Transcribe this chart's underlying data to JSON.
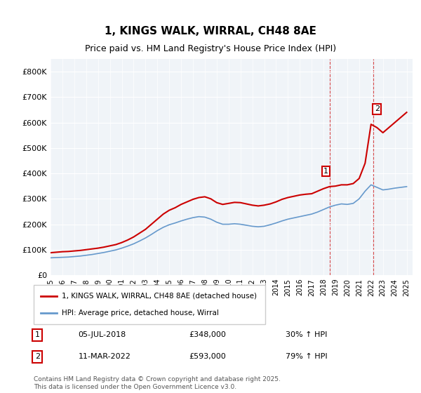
{
  "title": "1, KINGS WALK, WIRRAL, CH48 8AE",
  "subtitle": "Price paid vs. HM Land Registry's House Price Index (HPI)",
  "legend_label_red": "1, KINGS WALK, WIRRAL, CH48 8AE (detached house)",
  "legend_label_blue": "HPI: Average price, detached house, Wirral",
  "annotation1_label": "1",
  "annotation1_date": "05-JUL-2018",
  "annotation1_price": "£348,000",
  "annotation1_hpi": "30% ↑ HPI",
  "annotation1_year": 2018.5,
  "annotation2_label": "2",
  "annotation2_date": "11-MAR-2022",
  "annotation2_price": "£593,000",
  "annotation2_hpi": "79% ↑ HPI",
  "annotation2_year": 2022.2,
  "footer": "Contains HM Land Registry data © Crown copyright and database right 2025.\nThis data is licensed under the Open Government Licence v3.0.",
  "color_red": "#cc0000",
  "color_blue": "#6699cc",
  "color_vline": "#cc0000",
  "background_chart": "#f0f4f8",
  "ylim": [
    0,
    850000
  ],
  "yticks": [
    0,
    100000,
    200000,
    300000,
    400000,
    500000,
    600000,
    700000,
    800000
  ],
  "ytick_labels": [
    "£0",
    "£100K",
    "£200K",
    "£300K",
    "£400K",
    "£500K",
    "£600K",
    "£700K",
    "£800K"
  ],
  "xmin": 1995,
  "xmax": 2025.5,
  "red_years": [
    1995.0,
    1995.5,
    1996.0,
    1996.5,
    1997.0,
    1997.5,
    1998.0,
    1998.5,
    1999.0,
    1999.5,
    2000.0,
    2000.5,
    2001.0,
    2001.5,
    2002.0,
    2002.5,
    2003.0,
    2003.5,
    2004.0,
    2004.5,
    2005.0,
    2005.5,
    2006.0,
    2006.5,
    2007.0,
    2007.5,
    2008.0,
    2008.5,
    2009.0,
    2009.5,
    2010.0,
    2010.5,
    2011.0,
    2011.5,
    2012.0,
    2012.5,
    2013.0,
    2013.5,
    2014.0,
    2014.5,
    2015.0,
    2015.5,
    2016.0,
    2016.5,
    2017.0,
    2017.5,
    2018.0,
    2018.5,
    2019.0,
    2019.5,
    2020.0,
    2020.5,
    2021.0,
    2021.5,
    2022.0,
    2022.5,
    2023.0,
    2023.5,
    2024.0,
    2024.5,
    2025.0
  ],
  "red_values": [
    88000,
    90000,
    92000,
    93000,
    95000,
    97000,
    100000,
    103000,
    106000,
    110000,
    115000,
    120000,
    128000,
    138000,
    150000,
    165000,
    180000,
    200000,
    220000,
    240000,
    255000,
    265000,
    278000,
    288000,
    298000,
    305000,
    308000,
    300000,
    285000,
    278000,
    282000,
    286000,
    285000,
    280000,
    275000,
    272000,
    275000,
    280000,
    288000,
    298000,
    305000,
    310000,
    315000,
    318000,
    320000,
    330000,
    340000,
    348000,
    350000,
    355000,
    355000,
    360000,
    380000,
    440000,
    593000,
    580000,
    560000,
    580000,
    600000,
    620000,
    640000
  ],
  "blue_years": [
    1995.0,
    1995.5,
    1996.0,
    1996.5,
    1997.0,
    1997.5,
    1998.0,
    1998.5,
    1999.0,
    1999.5,
    2000.0,
    2000.5,
    2001.0,
    2001.5,
    2002.0,
    2002.5,
    2003.0,
    2003.5,
    2004.0,
    2004.5,
    2005.0,
    2005.5,
    2006.0,
    2006.5,
    2007.0,
    2007.5,
    2008.0,
    2008.5,
    2009.0,
    2009.5,
    2010.0,
    2010.5,
    2011.0,
    2011.5,
    2012.0,
    2012.5,
    2013.0,
    2013.5,
    2014.0,
    2014.5,
    2015.0,
    2015.5,
    2016.0,
    2016.5,
    2017.0,
    2017.5,
    2018.0,
    2018.5,
    2019.0,
    2019.5,
    2020.0,
    2020.5,
    2021.0,
    2021.5,
    2022.0,
    2022.5,
    2023.0,
    2023.5,
    2024.0,
    2024.5,
    2025.0
  ],
  "blue_values": [
    68000,
    69000,
    70000,
    71000,
    73000,
    75000,
    78000,
    81000,
    85000,
    89000,
    94000,
    99000,
    106000,
    114000,
    123000,
    134000,
    146000,
    160000,
    175000,
    188000,
    198000,
    205000,
    213000,
    220000,
    226000,
    230000,
    228000,
    220000,
    208000,
    200000,
    200000,
    202000,
    200000,
    196000,
    192000,
    190000,
    192000,
    198000,
    205000,
    213000,
    220000,
    225000,
    230000,
    235000,
    240000,
    248000,
    258000,
    268000,
    275000,
    280000,
    278000,
    282000,
    300000,
    330000,
    355000,
    345000,
    335000,
    338000,
    342000,
    345000,
    348000
  ]
}
